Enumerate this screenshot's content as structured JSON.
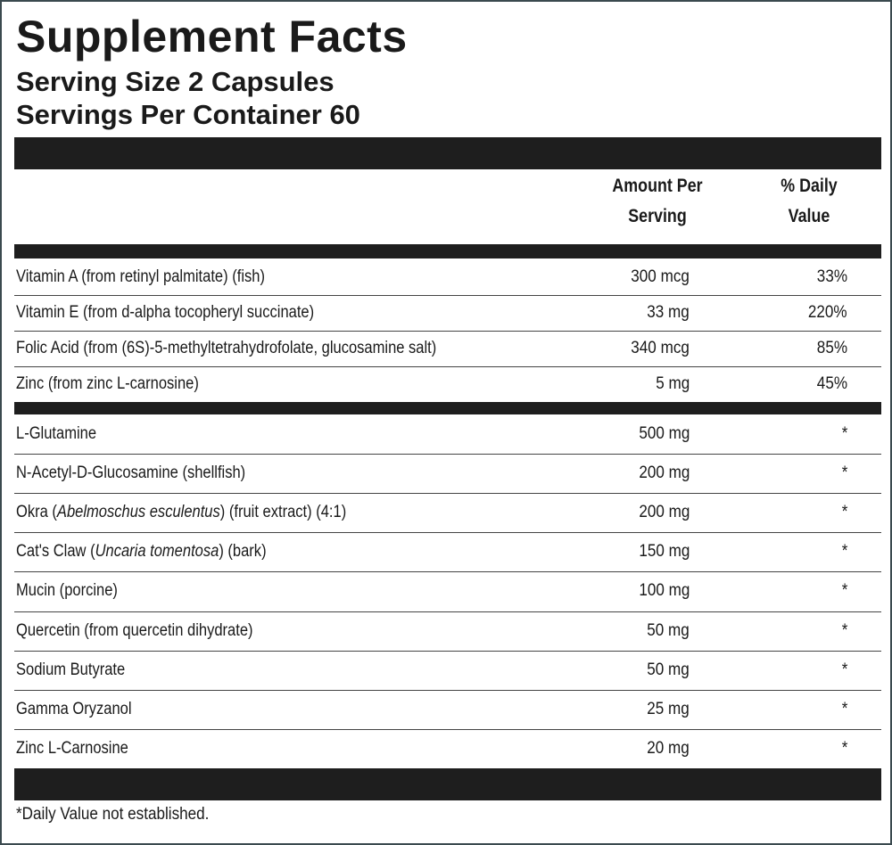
{
  "title": "Supplement Facts",
  "serving_size": "Serving Size 2 Capsules",
  "servings_per_container": "Servings Per Container 60",
  "columns": {
    "amount": "Amount Per Serving",
    "daily_value": "% Daily Value"
  },
  "vitamins": [
    {
      "name": "Vitamin A (from retinyl palmitate) (fish)",
      "amount": "300 mcg",
      "daily_value": "33%"
    },
    {
      "name": "Vitamin E (from d-alpha tocopheryl succinate)",
      "amount": "33 mg",
      "daily_value": "220%"
    },
    {
      "name": "Folic Acid (from (6S)-5-methyltetrahydrofolate, glucosamine salt)",
      "amount": "340 mcg",
      "daily_value": "85%"
    },
    {
      "name": "Zinc (from zinc L-carnosine)",
      "amount": "5 mg",
      "daily_value": "45%"
    }
  ],
  "other": [
    {
      "name": "L-Glutamine",
      "amount": "500 mg",
      "daily_value": "*"
    },
    {
      "name": "N-Acetyl-D-Glucosamine (shellfish)",
      "amount": "200 mg",
      "daily_value": "*"
    },
    {
      "name": [
        {
          "text": "Okra (",
          "italic": false
        },
        {
          "text": "Abelmoschus esculentus",
          "italic": true
        },
        {
          "text": ") (fruit extract) (4:1)",
          "italic": false
        }
      ],
      "amount": "200 mg",
      "daily_value": "*"
    },
    {
      "name": [
        {
          "text": "Cat's Claw (",
          "italic": false
        },
        {
          "text": "Uncaria tomentosa",
          "italic": true
        },
        {
          "text": ") (bark)",
          "italic": false
        }
      ],
      "amount": "150 mg",
      "daily_value": "*"
    },
    {
      "name": "Mucin (porcine)",
      "amount": "100 mg",
      "daily_value": "*"
    },
    {
      "name": "Quercetin (from quercetin dihydrate)",
      "amount": "50 mg",
      "daily_value": "*"
    },
    {
      "name": "Sodium Butyrate",
      "amount": "50 mg",
      "daily_value": "*"
    },
    {
      "name": "Gamma Oryzanol",
      "amount": "25 mg",
      "daily_value": "*"
    },
    {
      "name": "Zinc L-Carnosine",
      "amount": "20 mg",
      "daily_value": "*"
    }
  ],
  "footnote": "*Daily Value not established."
}
